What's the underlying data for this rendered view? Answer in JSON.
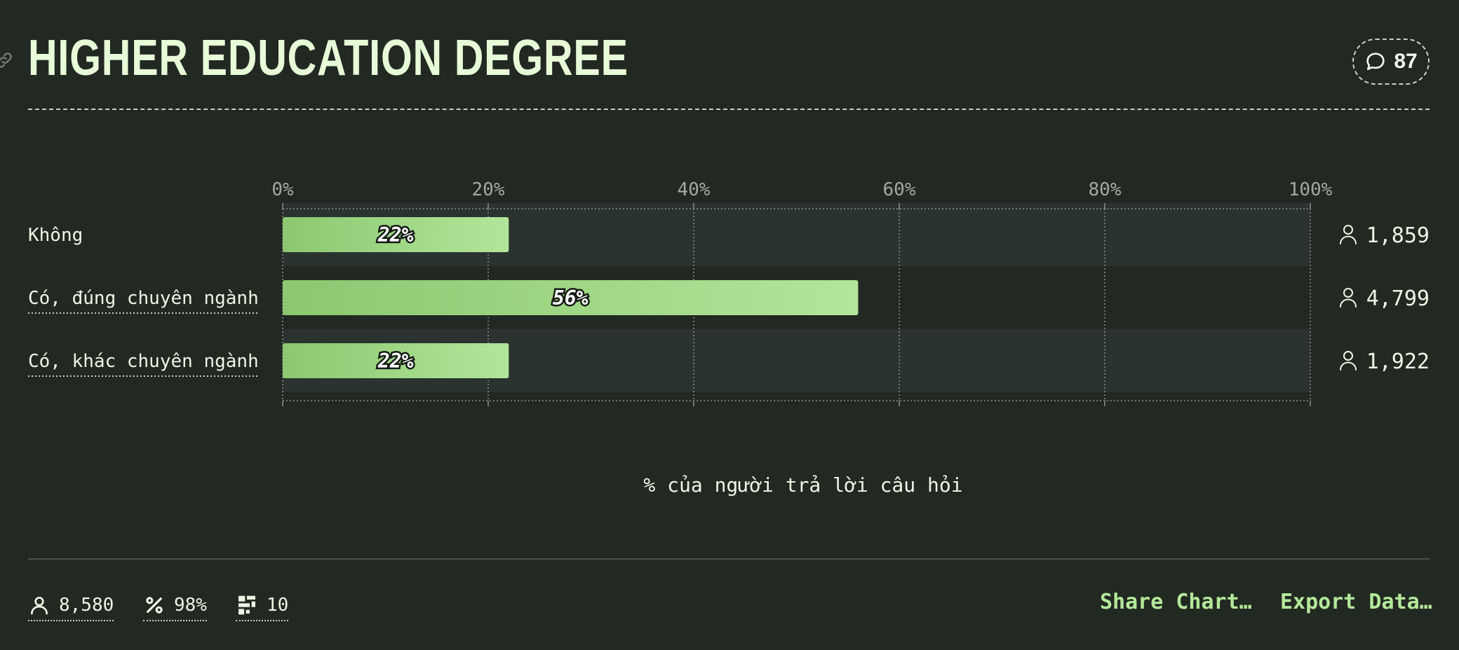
{
  "header": {
    "title": "HIGHER EDUCATION DEGREE",
    "comment_count": "87"
  },
  "chart_data": {
    "type": "bar",
    "orientation": "horizontal",
    "categories": [
      "Không",
      "Có, đúng chuyên ngành",
      "Có, khác chuyên ngành"
    ],
    "values": [
      22,
      56,
      22
    ],
    "value_labels": [
      "22%",
      "56%",
      "22%"
    ],
    "counts": [
      "1,859",
      "4,799",
      "1,922"
    ],
    "xlim": [
      0,
      100
    ],
    "ticks": [
      "0%",
      "20%",
      "40%",
      "60%",
      "80%",
      "100%"
    ],
    "xlabel": "% của người trả lời câu hỏi",
    "grid": true,
    "bar_gradient": [
      "#8cc870",
      "#b2e69a"
    ]
  },
  "footer": {
    "respondents": "8,580",
    "completion": "98%",
    "questions": "10",
    "share_label": "Share Chart…",
    "export_label": "Export Data…"
  },
  "colors": {
    "background": "#222822",
    "accent": "#b4e89a",
    "title": "#e8fbd8"
  }
}
